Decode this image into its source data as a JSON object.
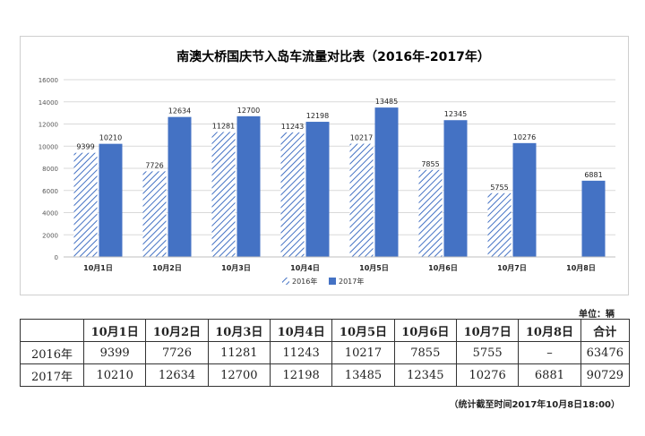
{
  "chart_data": {
    "type": "bar",
    "title": "南澳大桥国庆节入岛车流量对比表（2016年-2017年）",
    "categories": [
      "10月1日",
      "10月2日",
      "10月3日",
      "10月4日",
      "10月5日",
      "10月6日",
      "10月7日",
      "10月8日"
    ],
    "series": [
      {
        "name": "2016年",
        "values": [
          9399,
          7726,
          11281,
          11243,
          10217,
          7855,
          5755,
          null
        ],
        "color": "#4472c4",
        "pattern": "hatched"
      },
      {
        "name": "2017年",
        "values": [
          10210,
          12634,
          12700,
          12198,
          13485,
          12345,
          10276,
          6881
        ],
        "color": "#4472c4",
        "pattern": "solid"
      }
    ],
    "ylim": [
      0,
      16000
    ],
    "yticks": [
      "0",
      "2000",
      "4000",
      "6000",
      "8000",
      "10000",
      "12000",
      "14000",
      "16000"
    ],
    "grid": true,
    "legend": "bottom"
  },
  "table": {
    "unit": "单位：辆",
    "header": [
      "",
      "10月1日",
      "10月2日",
      "10月3日",
      "10月4日",
      "10月5日",
      "10月6日",
      "10月7日",
      "10月8日",
      "合计"
    ],
    "rows": [
      [
        "2016年",
        "9399",
        "7726",
        "11281",
        "11243",
        "10217",
        "7855",
        "5755",
        "–",
        "63476"
      ],
      [
        "2017年",
        "10210",
        "12634",
        "12700",
        "12198",
        "13485",
        "12345",
        "10276",
        "6881",
        "90729"
      ]
    ],
    "note": "（统计截至时间2017年10月8日18:00）"
  }
}
